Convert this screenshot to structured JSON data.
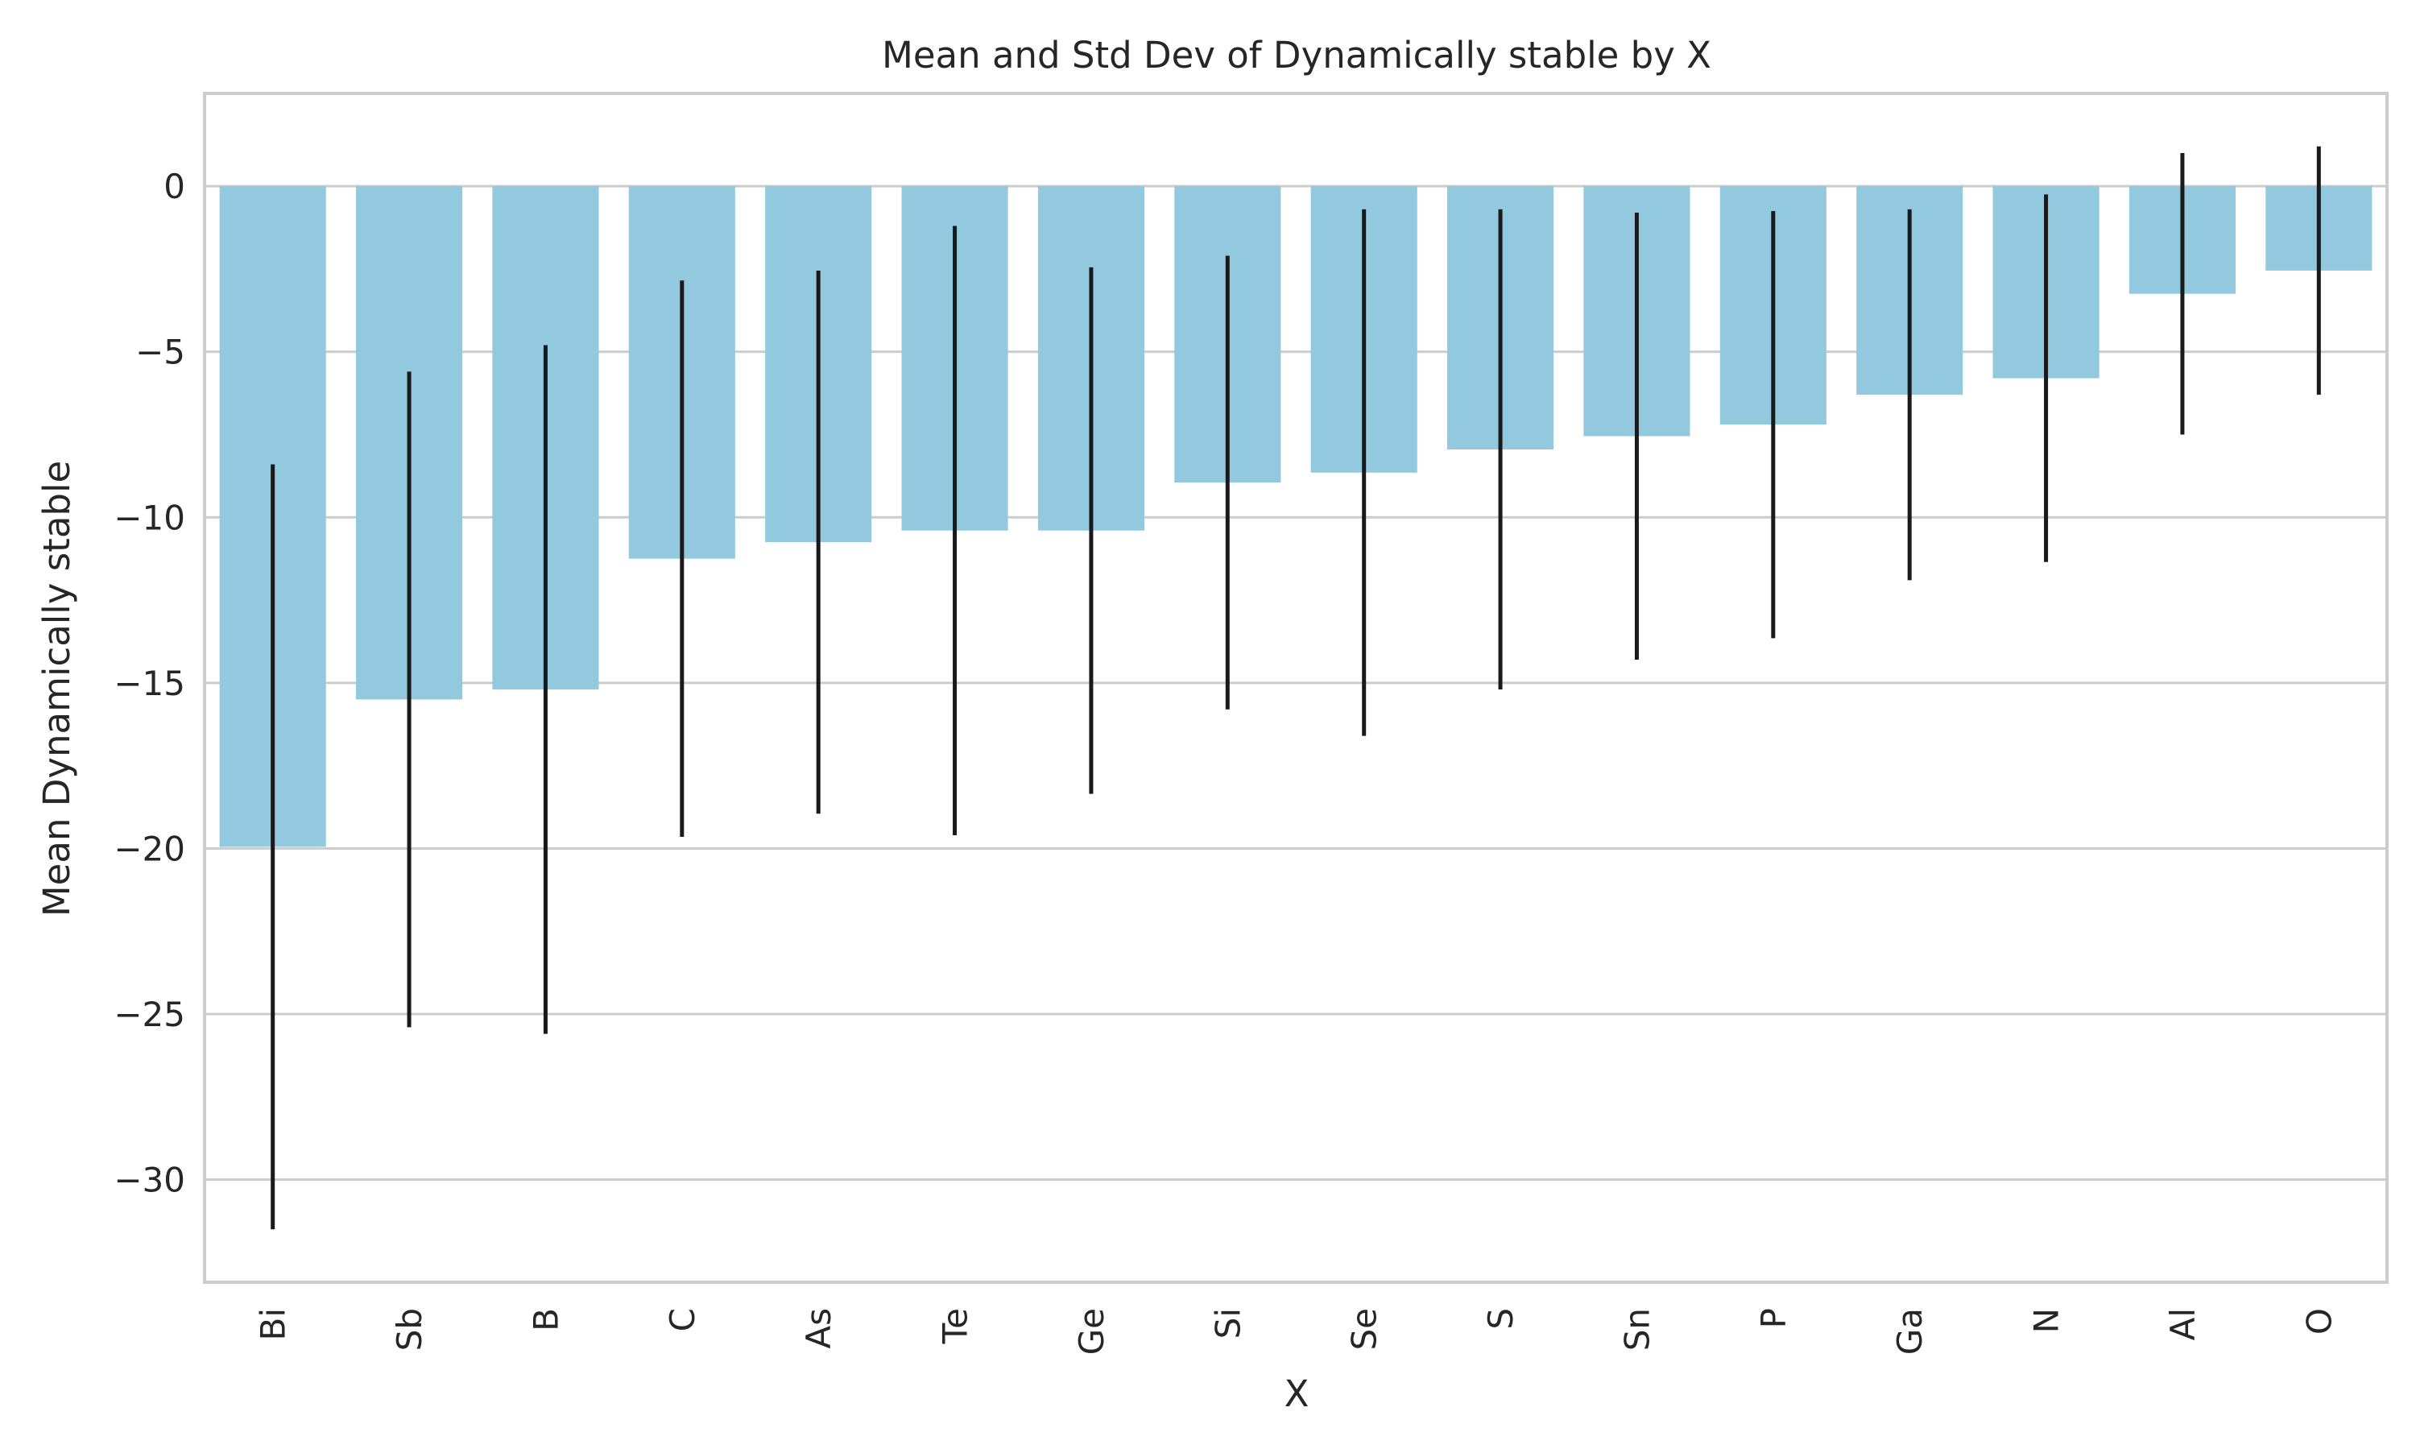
{
  "chart_data": {
    "type": "bar",
    "title": "Mean and Std Dev of Dynamically stable by X",
    "xlabel": "X",
    "ylabel": "Mean Dynamically stable",
    "categories": [
      "Bi",
      "Sb",
      "B",
      "C",
      "As",
      "Te",
      "Ge",
      "Si",
      "Se",
      "S",
      "Sn",
      "P",
      "Ga",
      "N",
      "Al",
      "O"
    ],
    "values": [
      -19.95,
      -15.5,
      -15.2,
      -11.25,
      -10.75,
      -10.4,
      -10.4,
      -8.95,
      -8.65,
      -7.95,
      -7.55,
      -7.2,
      -6.3,
      -5.8,
      -3.25,
      -2.55
    ],
    "error": [
      11.55,
      9.9,
      10.4,
      8.4,
      8.2,
      9.2,
      7.95,
      6.85,
      7.95,
      7.25,
      6.75,
      6.45,
      5.6,
      5.55,
      4.25,
      3.75
    ],
    "ylim": [
      -33.1,
      2.8
    ],
    "yticks": [
      0,
      -5,
      -10,
      -15,
      -20,
      -25,
      -30
    ],
    "ytick_labels": [
      "0",
      "−5",
      "−10",
      "−15",
      "−20",
      "−25",
      "−30"
    ],
    "grid": true,
    "bar_color": "#92c9df",
    "errorbar_color": "#1a1a1a"
  }
}
